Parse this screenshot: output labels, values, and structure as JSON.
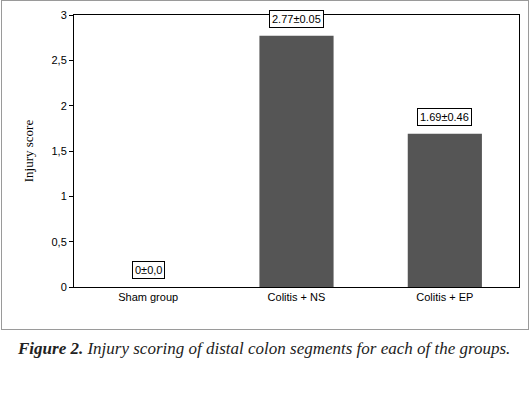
{
  "chart_data": {
    "type": "bar",
    "categories": [
      "Sham group",
      "Colitis + NS",
      "Colitis + EP"
    ],
    "values": [
      0,
      2.77,
      1.69
    ],
    "value_labels": [
      "0±0,0",
      "2.77±0.05",
      "1.69±0.46"
    ],
    "color": "#555555",
    "y_label": "Injury score",
    "ylim": [
      0,
      3
    ],
    "yticks": [
      0,
      {
        "value": 0.5,
        "label": "0,5"
      },
      1,
      {
        "value": 1.5,
        "label": "1,5"
      },
      2,
      {
        "value": 2.5,
        "label": "2,5"
      },
      3
    ],
    "grid": false,
    "data_labels": true,
    "caption_label": "Figure 2.",
    "caption": "Injury scoring of distal colon segments for each of the groups."
  }
}
